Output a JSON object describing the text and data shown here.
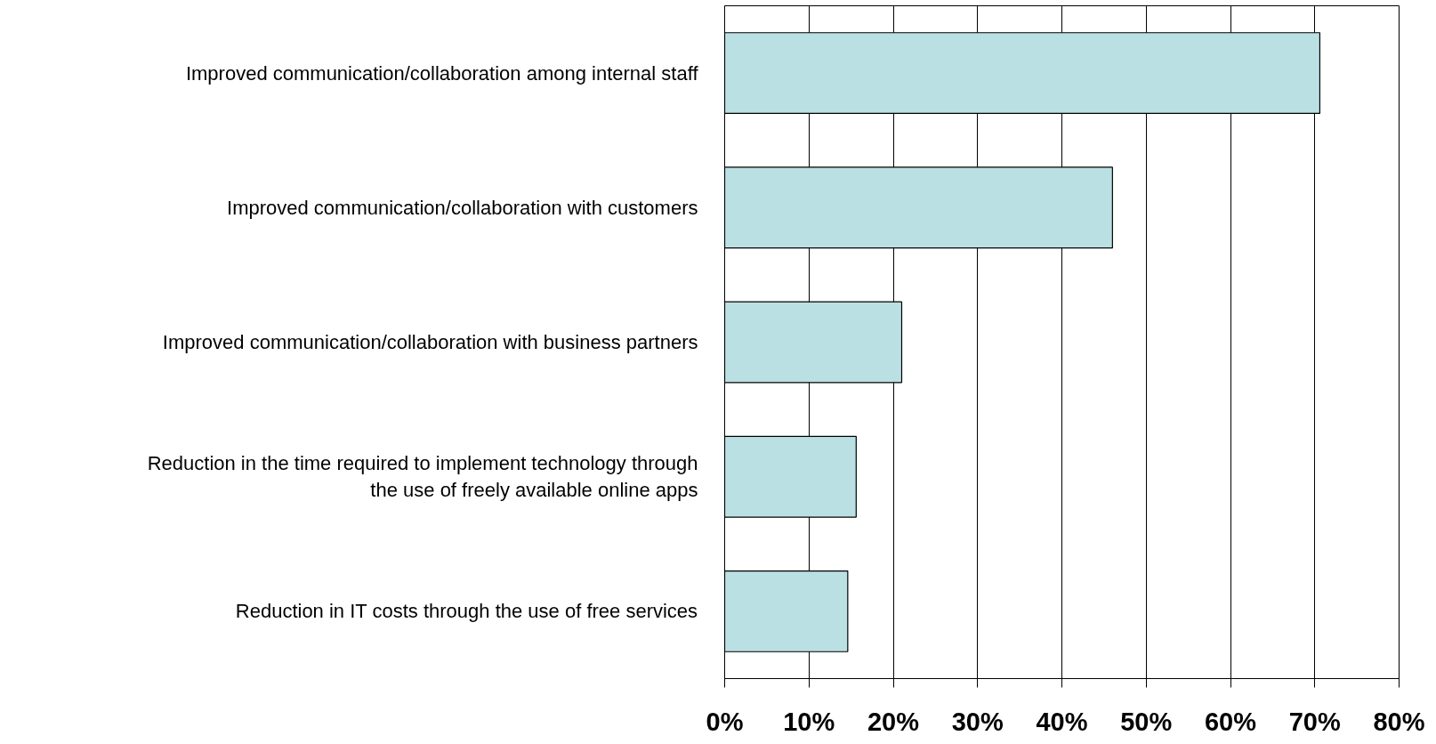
{
  "chart_data": {
    "type": "bar",
    "orientation": "horizontal",
    "categories": [
      "Improved communication/collaboration among internal staff",
      "Improved communication/collaboration with customers",
      "Improved communication/collaboration with business partners",
      "Reduction in the time required to implement technology through\nthe use of freely available online apps",
      "Reduction in IT costs through the use of free services"
    ],
    "values": [
      70.6,
      46,
      21,
      15.6,
      14.6
    ],
    "color": "#bbe0e3",
    "xlim": [
      0,
      80
    ],
    "xticks": [
      {
        "value": 0,
        "label": "0%"
      },
      {
        "value": 10,
        "label": "10%"
      },
      {
        "value": 20,
        "label": "20%"
      },
      {
        "value": 30,
        "label": "30%"
      },
      {
        "value": 40,
        "label": "40%"
      },
      {
        "value": 50,
        "label": "50%"
      },
      {
        "value": 60,
        "label": "60%"
      },
      {
        "value": 70,
        "label": "70%"
      },
      {
        "value": 80,
        "label": "80%"
      }
    ],
    "grid": "x"
  }
}
